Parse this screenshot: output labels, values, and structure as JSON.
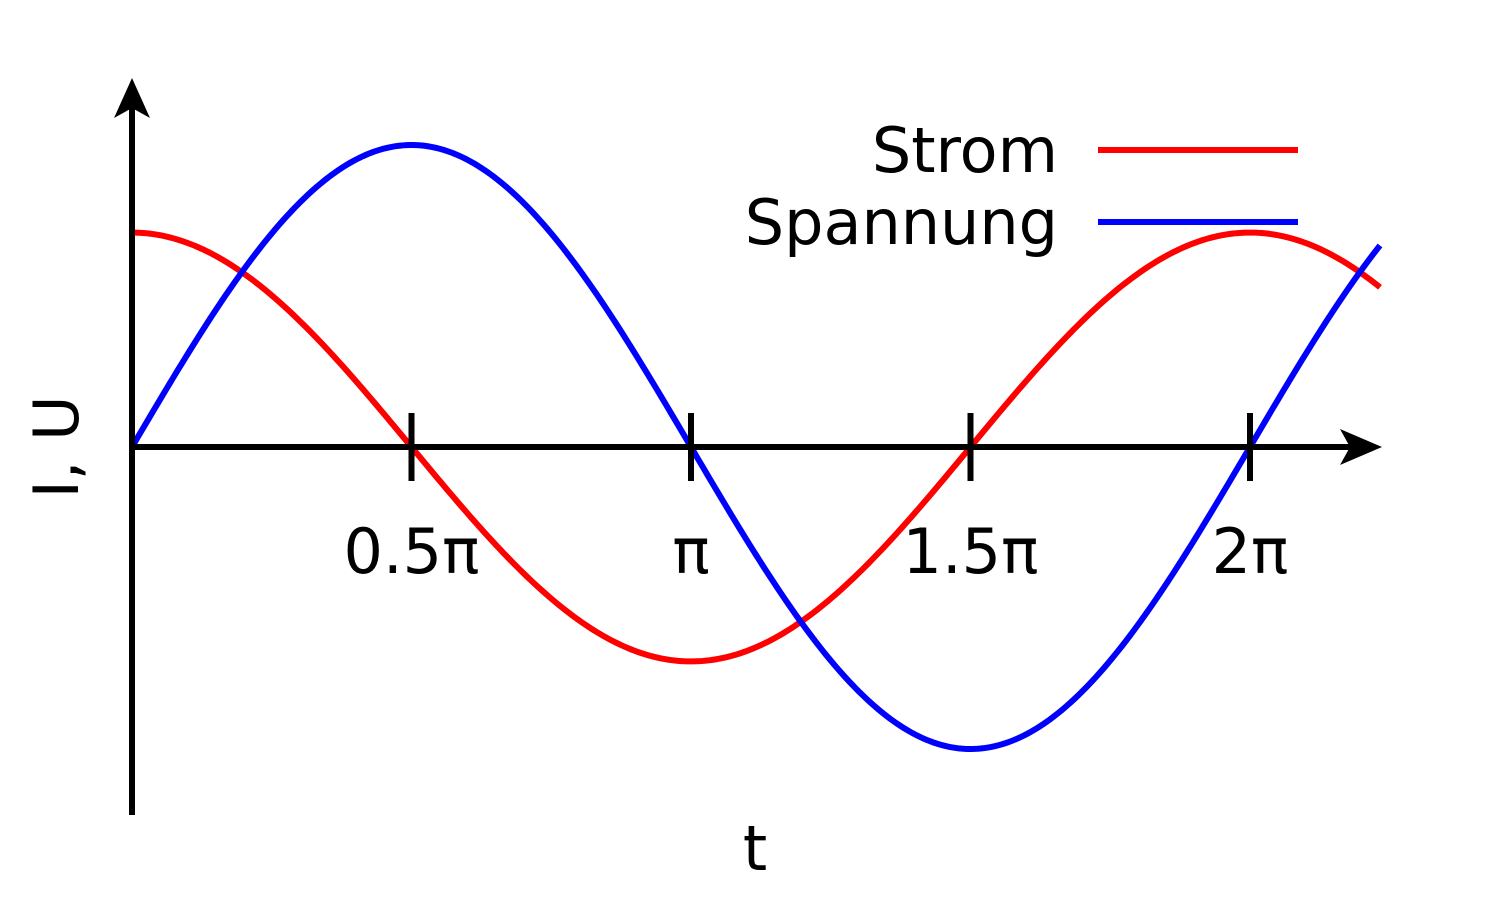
{
  "chart_data": {
    "type": "line",
    "xlabel": "t",
    "ylabel": "I, U",
    "x_ticks": [
      {
        "value": 1.5708,
        "label": "0.5π"
      },
      {
        "value": 3.1416,
        "label": "π"
      },
      {
        "value": 4.7124,
        "label": "1.5π"
      },
      {
        "value": 6.2832,
        "label": "2π"
      }
    ],
    "xlim": [
      0,
      7.0
    ],
    "ylim": [
      -1.45,
      1.45
    ],
    "legend_position": "top-right",
    "grid": false,
    "series": [
      {
        "name": "Strom",
        "color": "#ff0000",
        "function": "0.71*cos(x)",
        "x": [
          0,
          0.5236,
          1.0472,
          1.5708,
          2.0944,
          2.618,
          3.1416,
          3.6652,
          4.1888,
          4.7124,
          5.236,
          5.7596,
          6.2832,
          6.8068,
          7.0
        ],
        "y": [
          0.71,
          0.615,
          0.355,
          0,
          -0.355,
          -0.615,
          -0.71,
          -0.615,
          -0.355,
          0,
          0.355,
          0.615,
          0.71,
          0.615,
          0.54
        ]
      },
      {
        "name": "Spannung",
        "color": "#0000ff",
        "function": "1.0*sin(x)",
        "x": [
          0,
          0.5236,
          1.0472,
          1.5708,
          2.0944,
          2.618,
          3.1416,
          3.6652,
          4.1888,
          4.7124,
          5.236,
          5.7596,
          6.2832,
          6.8068,
          7.0
        ],
        "y": [
          0,
          0.5,
          0.866,
          1.0,
          0.866,
          0.5,
          0,
          -0.5,
          -0.866,
          -1.0,
          -0.866,
          -0.5,
          0,
          0.5,
          0.657
        ]
      }
    ]
  }
}
